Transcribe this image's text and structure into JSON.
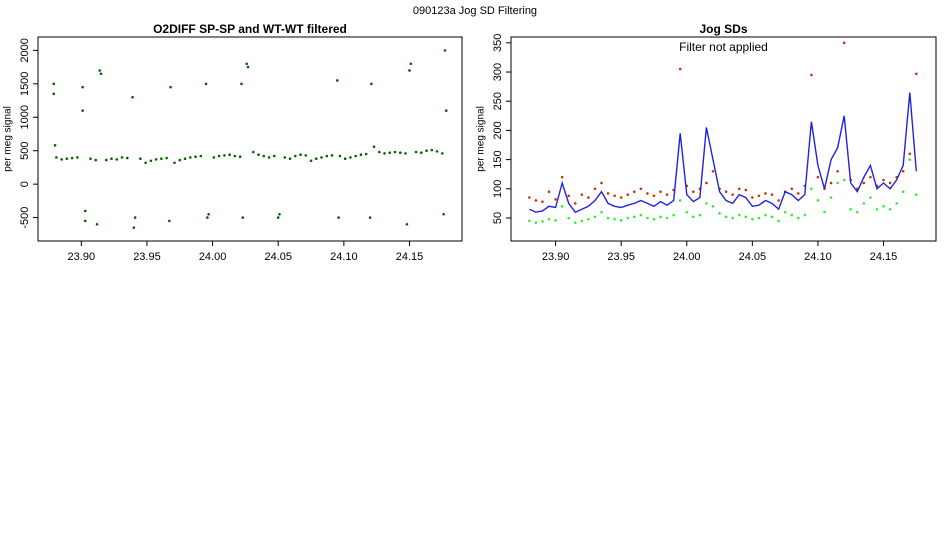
{
  "title": "090123a   Jog SD Filtering",
  "chart_data": [
    {
      "type": "scatter",
      "title": "O2DIFF SP-SP and WT-WT filtered",
      "ylabel": "per meg signal",
      "x": [
        23.879,
        23.879,
        23.88,
        23.881,
        23.885,
        23.889,
        23.893,
        23.897,
        23.901,
        23.901,
        23.903,
        23.903,
        23.907,
        23.911,
        23.912,
        23.914,
        23.915,
        23.919,
        23.923,
        23.927,
        23.931,
        23.935,
        23.939,
        23.94,
        23.941,
        23.945,
        23.949,
        23.953,
        23.957,
        23.961,
        23.965,
        23.967,
        23.968,
        23.971,
        23.975,
        23.979,
        23.983,
        23.987,
        23.991,
        23.995,
        23.996,
        23.997,
        24.001,
        24.005,
        24.009,
        24.013,
        24.017,
        24.021,
        24.022,
        24.023,
        24.026,
        24.027,
        24.031,
        24.035,
        24.039,
        24.043,
        24.047,
        24.05,
        24.051,
        24.055,
        24.059,
        24.063,
        24.067,
        24.071,
        24.075,
        24.079,
        24.083,
        24.087,
        24.091,
        24.095,
        24.096,
        24.097,
        24.101,
        24.105,
        24.109,
        24.113,
        24.117,
        24.12,
        24.121,
        24.123,
        24.127,
        24.131,
        24.135,
        24.139,
        24.143,
        24.147,
        24.148,
        24.15,
        24.151,
        24.155,
        24.159,
        24.163,
        24.167,
        24.171,
        24.175,
        24.176,
        24.177,
        24.178
      ],
      "series": [
        {
          "type": "scatter",
          "color": "#006400",
          "values": [
            1500,
            1350,
            580,
            400,
            370,
            380,
            390,
            400,
            1450,
            1100,
            -550,
            -400,
            380,
            360,
            -600,
            1700,
            1650,
            360,
            380,
            370,
            400,
            390,
            1300,
            -650,
            -500,
            380,
            320,
            350,
            370,
            380,
            390,
            -550,
            1450,
            320,
            360,
            380,
            400,
            410,
            420,
            1500,
            -500,
            -450,
            400,
            420,
            430,
            440,
            420,
            410,
            1500,
            -500,
            1800,
            1750,
            480,
            440,
            420,
            400,
            420,
            -500,
            -450,
            400,
            380,
            420,
            440,
            430,
            350,
            380,
            400,
            420,
            430,
            1550,
            -500,
            420,
            380,
            400,
            420,
            440,
            450,
            -500,
            1500,
            560,
            480,
            460,
            470,
            480,
            470,
            460,
            -600,
            1700,
            1800,
            480,
            470,
            500,
            510,
            490,
            460,
            -450,
            2000,
            1100
          ]
        }
      ],
      "xlim": [
        23.867,
        24.19
      ],
      "ylim": [
        -850,
        2200
      ],
      "xticks": [
        {
          "value": 23.9,
          "label": "23.90"
        },
        23.95,
        {
          "value": 24.0,
          "label": "24.00"
        },
        24.05,
        {
          "value": 24.1,
          "label": "24.10"
        },
        24.15
      ],
      "yticks": [
        -500,
        0,
        500,
        1000,
        1500,
        2000
      ]
    },
    {
      "type": "scatter",
      "title": "Jog SDs",
      "annotation": "Filter not applied",
      "ylabel": "per meg signal",
      "x": [
        23.88,
        23.885,
        23.89,
        23.895,
        23.9,
        23.905,
        23.91,
        23.915,
        23.92,
        23.925,
        23.93,
        23.935,
        23.94,
        23.945,
        23.95,
        23.955,
        23.96,
        23.965,
        23.97,
        23.975,
        23.98,
        23.985,
        23.99,
        23.995,
        24.0,
        24.005,
        24.01,
        24.015,
        24.02,
        24.025,
        24.03,
        24.035,
        24.04,
        24.045,
        24.05,
        24.055,
        24.06,
        24.065,
        24.07,
        24.075,
        24.08,
        24.085,
        24.09,
        24.095,
        24.1,
        24.105,
        24.11,
        24.115,
        24.12,
        24.125,
        24.13,
        24.135,
        24.14,
        24.145,
        24.15,
        24.155,
        24.16,
        24.165,
        24.17,
        24.175
      ],
      "series": [
        {
          "type": "scatter",
          "color": "#cc3300",
          "values": [
            85,
            80,
            78,
            95,
            82,
            120,
            88,
            75,
            90,
            85,
            100,
            110,
            92,
            88,
            85,
            90,
            95,
            100,
            92,
            88,
            95,
            90,
            98,
            305,
            105,
            95,
            100,
            110,
            130,
            100,
            95,
            90,
            100,
            98,
            85,
            88,
            92,
            90,
            80,
            95,
            100,
            92,
            105,
            295,
            120,
            100,
            110,
            130,
            350,
            115,
            100,
            110,
            120,
            105,
            115,
            110,
            120,
            130,
            160,
            297
          ]
        },
        {
          "type": "scatter",
          "color": "#33ee33",
          "values": [
            45,
            42,
            44,
            48,
            46,
            70,
            50,
            42,
            45,
            48,
            52,
            60,
            50,
            48,
            46,
            50,
            52,
            55,
            50,
            48,
            52,
            50,
            55,
            80,
            60,
            52,
            55,
            75,
            70,
            58,
            52,
            50,
            55,
            52,
            48,
            50,
            55,
            52,
            45,
            60,
            55,
            50,
            55,
            100,
            80,
            60,
            85,
            110,
            115,
            65,
            60,
            75,
            85,
            65,
            70,
            65,
            75,
            95,
            150,
            90
          ]
        },
        {
          "type": "line",
          "color": "#2222dd",
          "values": [
            65,
            60,
            62,
            70,
            68,
            110,
            75,
            60,
            65,
            70,
            80,
            95,
            75,
            70,
            68,
            72,
            75,
            80,
            75,
            70,
            78,
            72,
            80,
            195,
            90,
            78,
            85,
            205,
            150,
            95,
            80,
            75,
            90,
            85,
            70,
            72,
            80,
            75,
            65,
            95,
            90,
            80,
            90,
            215,
            140,
            100,
            150,
            170,
            225,
            110,
            95,
            120,
            140,
            100,
            110,
            100,
            115,
            140,
            265,
            130
          ]
        }
      ],
      "xlim": [
        23.866,
        24.19
      ],
      "ylim": [
        10.6,
        360
      ],
      "xticks": [
        {
          "value": 23.9,
          "label": "23.90"
        },
        23.95,
        {
          "value": 24.0,
          "label": "24.00"
        },
        24.05,
        {
          "value": 24.1,
          "label": "24.10"
        },
        24.15
      ],
      "yticks": [
        50,
        100,
        150,
        200,
        250,
        300,
        350
      ]
    }
  ]
}
